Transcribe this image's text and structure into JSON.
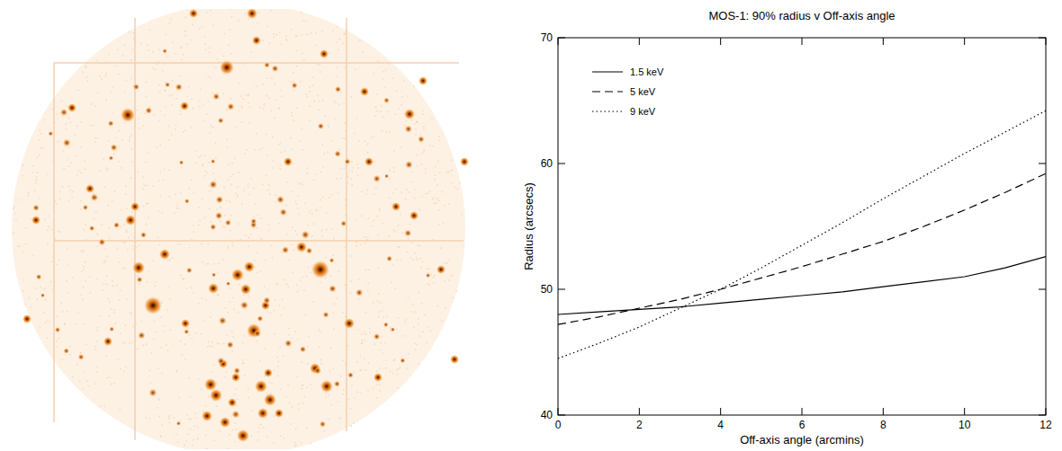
{
  "chart_data": {
    "type": "line",
    "title": "MOS-1: 90% radius v Off-axis angle",
    "x_label": "Off-axis angle (arcmins)",
    "y_label": "Radius (arcsecs)",
    "x": [
      0,
      1,
      2,
      3,
      4,
      5,
      6,
      7,
      8,
      9,
      10,
      11,
      12
    ],
    "xlim": [
      0,
      12
    ],
    "xticks": [
      0,
      2,
      4,
      6,
      8,
      10,
      12
    ],
    "ylim": [
      40,
      70
    ],
    "yticks": [
      40,
      50,
      60,
      70
    ],
    "grid": false,
    "legend": "upper left",
    "series": [
      {
        "name": "1.5 keV",
        "color": "#000000",
        "line_style": "solid",
        "values": [
          48.0,
          48.2,
          48.4,
          48.6,
          48.9,
          49.2,
          49.5,
          49.8,
          50.2,
          50.6,
          51.0,
          51.7,
          52.6
        ]
      },
      {
        "name": "5 keV",
        "color": "#000000",
        "line_style": "dashed",
        "values": [
          47.2,
          47.8,
          48.5,
          49.2,
          50.0,
          50.9,
          51.8,
          52.8,
          53.8,
          55.0,
          56.3,
          57.7,
          59.2
        ]
      },
      {
        "name": "9 keV",
        "color": "#000000",
        "line_style": "dotted",
        "values": [
          44.5,
          45.7,
          47.0,
          48.5,
          50.0,
          51.7,
          53.5,
          55.3,
          57.2,
          59.0,
          60.8,
          62.5,
          64.2
        ]
      }
    ]
  }
}
